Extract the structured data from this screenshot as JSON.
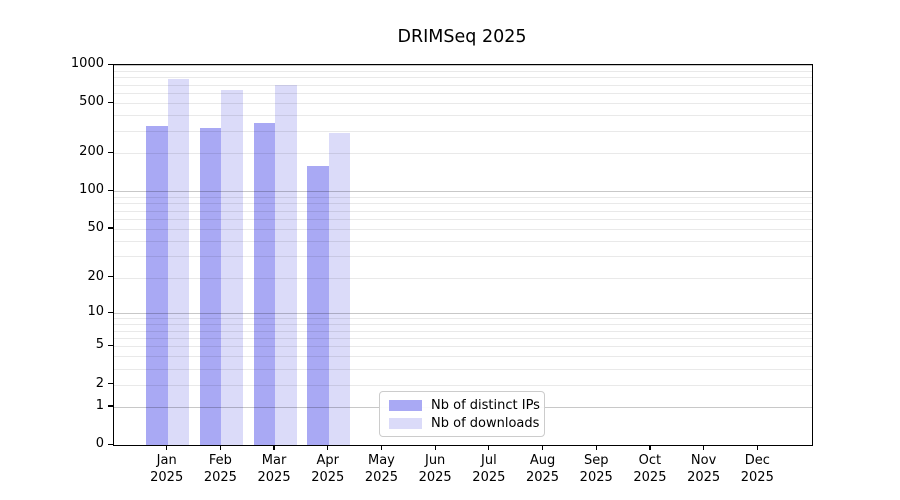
{
  "chart_data": {
    "type": "bar",
    "title": "DRIMSeq 2025",
    "categories": [
      "Jan 2025",
      "Feb 2025",
      "Mar 2025",
      "Apr 2025",
      "May 2025",
      "Jun 2025",
      "Jul 2025",
      "Aug 2025",
      "Sep 2025",
      "Oct 2025",
      "Nov 2025",
      "Dec 2025"
    ],
    "series": [
      {
        "name": "Nb of distinct IPs",
        "color": "#a9a9f4",
        "values": [
          330,
          315,
          350,
          160,
          null,
          null,
          null,
          null,
          null,
          null,
          null,
          null
        ]
      },
      {
        "name": "Nb of downloads",
        "color": "#dbdbf9",
        "values": [
          775,
          635,
          700,
          290,
          null,
          null,
          null,
          null,
          null,
          null,
          null,
          null
        ]
      }
    ],
    "yscale": "log1p",
    "ylim": [
      0,
      1000
    ],
    "yticks": [
      0,
      1,
      2,
      5,
      10,
      20,
      50,
      100,
      200,
      500,
      1000
    ],
    "grid": {
      "major": [
        1,
        10,
        100,
        1000
      ],
      "minor": [
        2,
        3,
        4,
        5,
        6,
        7,
        8,
        9,
        20,
        30,
        40,
        50,
        60,
        70,
        80,
        90,
        200,
        300,
        400,
        500,
        600,
        700,
        800,
        900
      ]
    },
    "legend_position": "lower center",
    "axis_color": "#000000",
    "background_color": "#ffffff"
  }
}
